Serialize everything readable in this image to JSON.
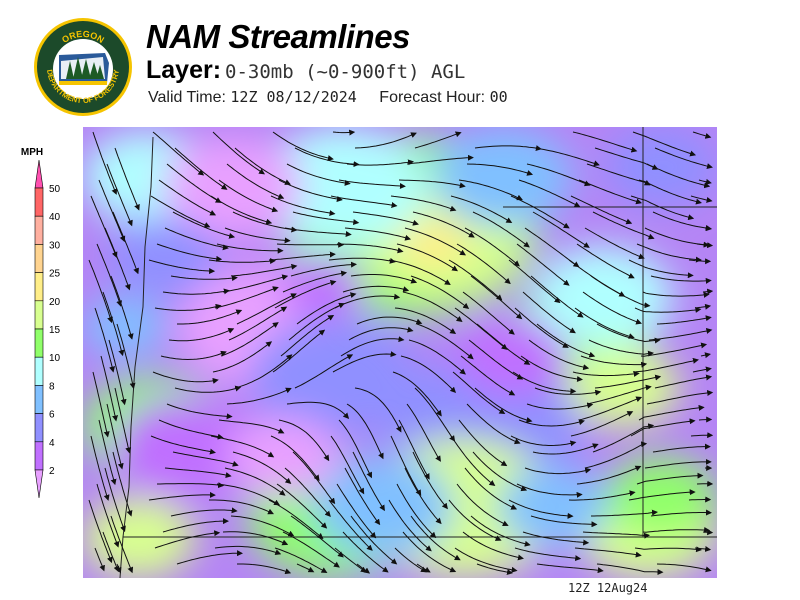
{
  "logo": {
    "text_top": "OREGON",
    "text_bottom": "DEPARTMENT OF FORESTRY"
  },
  "header": {
    "title": "NAM Streamlines",
    "layer_label": "Layer:",
    "layer_value": "0-30mb (~0-900ft) AGL",
    "valid_label": "Valid Time:",
    "valid_value": "12Z 08/12/2024",
    "forecast_label": "Forecast Hour:",
    "forecast_value": "00"
  },
  "legend": {
    "unit": "MPH",
    "bins": [
      {
        "label": "50",
        "color": "#ff6666"
      },
      {
        "label": "40",
        "color": "#ffb0a0"
      },
      {
        "label": "30",
        "color": "#ffd490"
      },
      {
        "label": "25",
        "color": "#ffee88"
      },
      {
        "label": "20",
        "color": "#d8ff90"
      },
      {
        "label": "15",
        "color": "#90ff6a"
      },
      {
        "label": "10",
        "color": "#b0ffff"
      },
      {
        "label": "8",
        "color": "#80c0ff"
      },
      {
        "label": "6",
        "color": "#9090ff"
      },
      {
        "label": "4",
        "color": "#c070ff"
      },
      {
        "label": "2",
        "color": "#e8a0ff"
      }
    ],
    "top_arrow_color": "#ff50b0"
  },
  "footer": {
    "timestamp": "12Z 12Aug24"
  }
}
